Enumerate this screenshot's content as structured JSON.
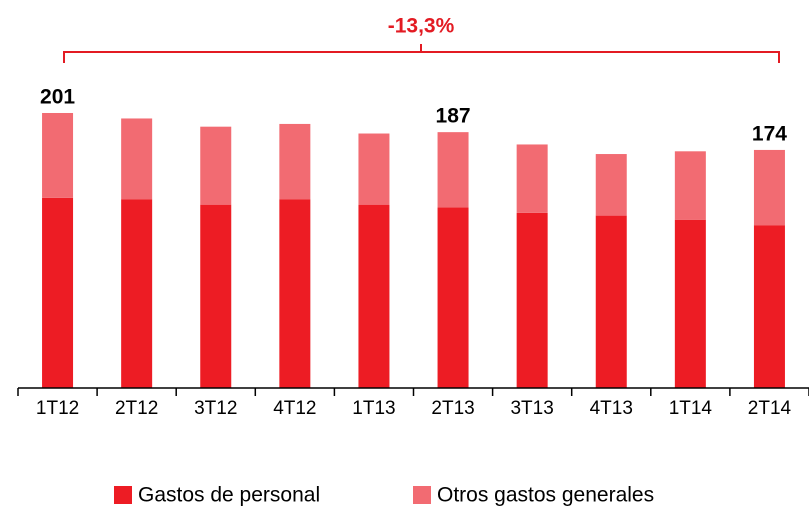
{
  "chart_data": {
    "type": "stacked_bar",
    "categories": [
      "1T12",
      "2T12",
      "3T12",
      "4T12",
      "1T13",
      "2T13",
      "3T13",
      "4T13",
      "1T14",
      "2T14"
    ],
    "series": [
      {
        "name": "Gastos de personal",
        "color": "#ed1c24",
        "values": [
          139,
          138,
          134,
          138,
          134,
          132,
          128,
          126,
          123,
          119
        ]
      },
      {
        "name": "Otros gastos generales",
        "color": "#f26b72",
        "values": [
          62,
          59,
          57,
          55,
          52,
          55,
          50,
          45,
          50,
          55
        ]
      }
    ],
    "totals": [
      201,
      null,
      null,
      null,
      null,
      187,
      null,
      null,
      null,
      174
    ],
    "annotation": "-13,3%",
    "ylim": [
      0,
      220
    ],
    "legend": "bottom"
  }
}
